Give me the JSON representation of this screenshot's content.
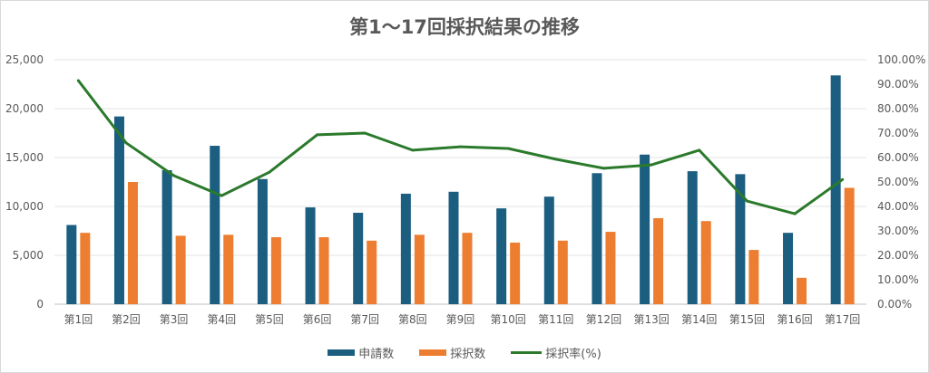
{
  "chart_data": {
    "type": "bar",
    "title": "第1〜17回採択結果の推移",
    "categories": [
      "第1回",
      "第2回",
      "第3回",
      "第4回",
      "第5回",
      "第6回",
      "第7回",
      "第8回",
      "第9回",
      "第10回",
      "第11回",
      "第12回",
      "第13回",
      "第14回",
      "第15回",
      "第16回",
      "第17回"
    ],
    "series": [
      {
        "name": "申請数",
        "type": "bar",
        "axis": "left",
        "color": "#1b5e80",
        "values": [
          8100,
          19200,
          13700,
          16200,
          12800,
          9900,
          9350,
          11300,
          11500,
          9800,
          11000,
          13400,
          15300,
          13600,
          13300,
          7300,
          23400
        ]
      },
      {
        "name": "採択数",
        "type": "bar",
        "axis": "left",
        "color": "#ed7d31",
        "values": [
          7300,
          12500,
          7000,
          7100,
          6850,
          6850,
          6500,
          7100,
          7300,
          6300,
          6500,
          7400,
          8800,
          8500,
          5550,
          2700,
          11900
        ]
      },
      {
        "name": "採択率(%)",
        "type": "line",
        "axis": "right",
        "color": "#2b7a2b",
        "values": [
          91.5,
          66.0,
          52.6,
          44.4,
          54.0,
          69.3,
          70.0,
          63.0,
          64.4,
          63.7,
          59.3,
          55.6,
          57.0,
          63.0,
          42.2,
          37.0,
          51.0
        ]
      }
    ],
    "left_axis": {
      "ylim": [
        0,
        25000
      ],
      "ticks": [
        "0",
        "5,000",
        "10,000",
        "15,000",
        "20,000",
        "25,000"
      ]
    },
    "right_axis": {
      "ylim": [
        0,
        100
      ],
      "ticks": [
        "0.00%",
        "10.00%",
        "20.00%",
        "30.00%",
        "40.00%",
        "50.00%",
        "60.00%",
        "70.00%",
        "80.00%",
        "90.00%",
        "100.00%"
      ]
    },
    "grid": true,
    "legend_position": "bottom"
  }
}
